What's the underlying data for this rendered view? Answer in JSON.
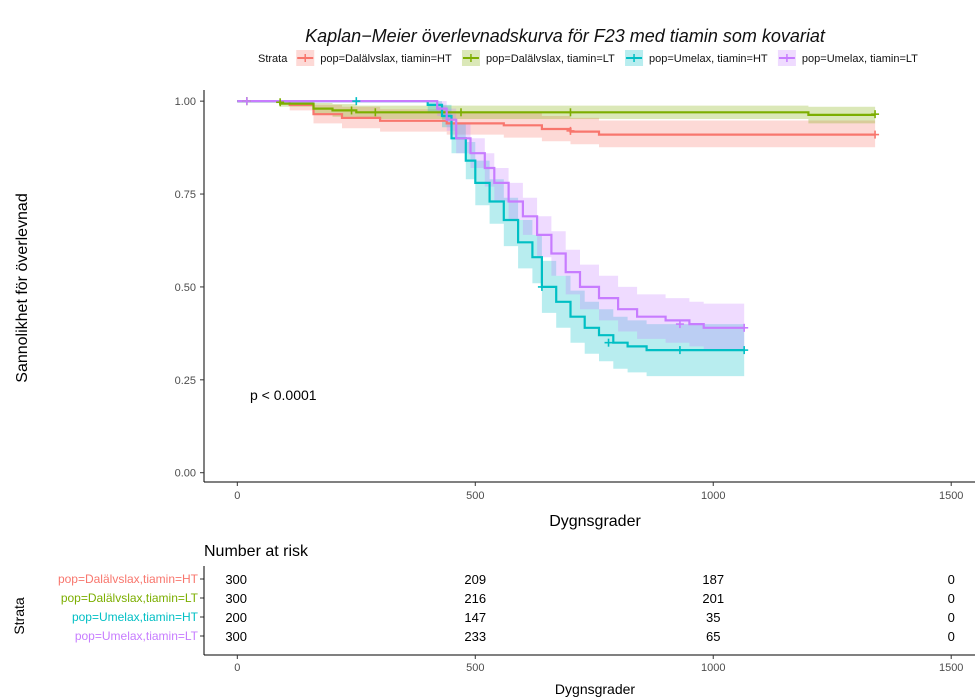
{
  "chart_data": {
    "type": "line",
    "subtype": "kaplan-meier",
    "title": "Kaplan−Meier överlevnadskurva för F23 med tiamin som kovariat",
    "xlabel": "Dygnsgrader",
    "ylabel": "Sannolikhet för överlevnad",
    "xlim": [
      -70,
      1550
    ],
    "ylim": [
      -0.025,
      1.03
    ],
    "x_ticks": [
      0,
      500,
      1000,
      1500
    ],
    "x_tick_labels": [
      "0",
      "500",
      "1000",
      "1500"
    ],
    "y_ticks": [
      0,
      0.25,
      0.5,
      0.75,
      1.0
    ],
    "y_tick_labels": [
      "0.00",
      "0.25",
      "0.50",
      "0.75",
      "1.00"
    ],
    "grid": false,
    "legend_title": "Strata",
    "legend_position": "top",
    "annotation": "p < 0.0001",
    "series": [
      {
        "name": "pop=Dalälvslax, tiamin=HT",
        "color": "#F8766D",
        "steps": [
          [
            0,
            1.0
          ],
          [
            110,
            0.99
          ],
          [
            160,
            0.965
          ],
          [
            220,
            0.955
          ],
          [
            300,
            0.947
          ],
          [
            440,
            0.94
          ],
          [
            560,
            0.935
          ],
          [
            640,
            0.925
          ],
          [
            700,
            0.918
          ],
          [
            760,
            0.91
          ],
          [
            1340,
            0.91
          ]
        ],
        "band_upper": [
          [
            0,
            1.0
          ],
          [
            110,
            1.0
          ],
          [
            160,
            0.99
          ],
          [
            220,
            0.985
          ],
          [
            300,
            0.978
          ],
          [
            440,
            0.972
          ],
          [
            560,
            0.968
          ],
          [
            640,
            0.96
          ],
          [
            700,
            0.955
          ],
          [
            760,
            0.948
          ],
          [
            1340,
            0.945
          ]
        ],
        "band_lower": [
          [
            0,
            1.0
          ],
          [
            110,
            0.975
          ],
          [
            160,
            0.94
          ],
          [
            220,
            0.927
          ],
          [
            300,
            0.918
          ],
          [
            440,
            0.91
          ],
          [
            560,
            0.902
          ],
          [
            640,
            0.892
          ],
          [
            700,
            0.884
          ],
          [
            760,
            0.876
          ],
          [
            1340,
            0.875
          ]
        ],
        "censor": [
          [
            700,
            0.92
          ],
          [
            1340,
            0.91
          ]
        ]
      },
      {
        "name": "pop=Dalälvslax, tiamin=LT",
        "color": "#7CAE00",
        "steps": [
          [
            0,
            1.0
          ],
          [
            90,
            0.993
          ],
          [
            160,
            0.98
          ],
          [
            200,
            0.975
          ],
          [
            250,
            0.97
          ],
          [
            1200,
            0.963
          ],
          [
            1340,
            0.963
          ]
        ],
        "band_upper": [
          [
            0,
            1.0
          ],
          [
            90,
            1.0
          ],
          [
            160,
            0.995
          ],
          [
            200,
            0.992
          ],
          [
            250,
            0.988
          ],
          [
            1200,
            0.985
          ],
          [
            1340,
            0.985
          ]
        ],
        "band_lower": [
          [
            0,
            1.0
          ],
          [
            90,
            0.985
          ],
          [
            160,
            0.965
          ],
          [
            200,
            0.958
          ],
          [
            250,
            0.952
          ],
          [
            1200,
            0.94
          ],
          [
            1340,
            0.94
          ]
        ],
        "censor": [
          [
            20,
            1.0
          ],
          [
            90,
            0.997
          ],
          [
            240,
            0.975
          ],
          [
            290,
            0.97
          ],
          [
            470,
            0.97
          ],
          [
            700,
            0.97
          ],
          [
            1340,
            0.965
          ]
        ]
      },
      {
        "name": "pop=Umelax, tiamin=HT",
        "color": "#00BFC4",
        "steps": [
          [
            0,
            1.0
          ],
          [
            400,
            0.99
          ],
          [
            430,
            0.96
          ],
          [
            450,
            0.9
          ],
          [
            480,
            0.84
          ],
          [
            500,
            0.78
          ],
          [
            530,
            0.73
          ],
          [
            560,
            0.68
          ],
          [
            590,
            0.62
          ],
          [
            620,
            0.58
          ],
          [
            640,
            0.5
          ],
          [
            670,
            0.46
          ],
          [
            700,
            0.42
          ],
          [
            730,
            0.39
          ],
          [
            760,
            0.37
          ],
          [
            790,
            0.35
          ],
          [
            820,
            0.34
          ],
          [
            860,
            0.33
          ],
          [
            1065,
            0.33
          ]
        ],
        "band_upper": [
          [
            0,
            1.0
          ],
          [
            400,
            1.0
          ],
          [
            430,
            0.99
          ],
          [
            450,
            0.94
          ],
          [
            480,
            0.89
          ],
          [
            500,
            0.84
          ],
          [
            530,
            0.79
          ],
          [
            560,
            0.74
          ],
          [
            590,
            0.68
          ],
          [
            620,
            0.64
          ],
          [
            640,
            0.57
          ],
          [
            670,
            0.53
          ],
          [
            700,
            0.49
          ],
          [
            730,
            0.46
          ],
          [
            760,
            0.44
          ],
          [
            790,
            0.42
          ],
          [
            820,
            0.41
          ],
          [
            860,
            0.4
          ],
          [
            1065,
            0.4
          ]
        ],
        "band_lower": [
          [
            0,
            1.0
          ],
          [
            400,
            0.97
          ],
          [
            430,
            0.93
          ],
          [
            450,
            0.86
          ],
          [
            480,
            0.79
          ],
          [
            500,
            0.72
          ],
          [
            530,
            0.67
          ],
          [
            560,
            0.61
          ],
          [
            590,
            0.55
          ],
          [
            620,
            0.51
          ],
          [
            640,
            0.43
          ],
          [
            670,
            0.39
          ],
          [
            700,
            0.35
          ],
          [
            730,
            0.32
          ],
          [
            760,
            0.3
          ],
          [
            790,
            0.28
          ],
          [
            820,
            0.27
          ],
          [
            860,
            0.26
          ],
          [
            1065,
            0.26
          ]
        ],
        "censor": [
          [
            250,
            1.0
          ],
          [
            640,
            0.5
          ],
          [
            780,
            0.35
          ],
          [
            930,
            0.33
          ],
          [
            1065,
            0.33
          ]
        ]
      },
      {
        "name": "pop=Umelax, tiamin=LT",
        "color": "#C77CFF",
        "steps": [
          [
            0,
            1.0
          ],
          [
            420,
            0.98
          ],
          [
            440,
            0.95
          ],
          [
            460,
            0.9
          ],
          [
            490,
            0.86
          ],
          [
            520,
            0.82
          ],
          [
            540,
            0.78
          ],
          [
            570,
            0.73
          ],
          [
            600,
            0.69
          ],
          [
            630,
            0.64
          ],
          [
            660,
            0.59
          ],
          [
            690,
            0.54
          ],
          [
            720,
            0.5
          ],
          [
            760,
            0.47
          ],
          [
            800,
            0.44
          ],
          [
            840,
            0.42
          ],
          [
            900,
            0.41
          ],
          [
            950,
            0.4
          ],
          [
            980,
            0.39
          ],
          [
            1065,
            0.39
          ]
        ],
        "band_upper": [
          [
            0,
            1.0
          ],
          [
            420,
            1.0
          ],
          [
            440,
            0.98
          ],
          [
            460,
            0.94
          ],
          [
            490,
            0.9
          ],
          [
            520,
            0.86
          ],
          [
            540,
            0.82
          ],
          [
            570,
            0.78
          ],
          [
            600,
            0.74
          ],
          [
            630,
            0.69
          ],
          [
            660,
            0.65
          ],
          [
            690,
            0.6
          ],
          [
            720,
            0.56
          ],
          [
            760,
            0.53
          ],
          [
            800,
            0.5
          ],
          [
            840,
            0.48
          ],
          [
            900,
            0.47
          ],
          [
            950,
            0.46
          ],
          [
            980,
            0.455
          ],
          [
            1065,
            0.455
          ]
        ],
        "band_lower": [
          [
            0,
            1.0
          ],
          [
            420,
            0.96
          ],
          [
            440,
            0.92
          ],
          [
            460,
            0.86
          ],
          [
            490,
            0.82
          ],
          [
            520,
            0.77
          ],
          [
            540,
            0.73
          ],
          [
            570,
            0.68
          ],
          [
            600,
            0.64
          ],
          [
            630,
            0.58
          ],
          [
            660,
            0.53
          ],
          [
            690,
            0.48
          ],
          [
            720,
            0.44
          ],
          [
            760,
            0.41
          ],
          [
            800,
            0.38
          ],
          [
            840,
            0.36
          ],
          [
            900,
            0.35
          ],
          [
            950,
            0.34
          ],
          [
            980,
            0.33
          ],
          [
            1065,
            0.33
          ]
        ],
        "censor": [
          [
            20,
            1.0
          ],
          [
            930,
            0.4
          ],
          [
            1065,
            0.39
          ]
        ]
      }
    ],
    "risk_table": {
      "title": "Number at risk",
      "ylabel": "Strata",
      "xlabel": "Dygnsgrader",
      "times": [
        0,
        500,
        1000,
        1500
      ],
      "rows": [
        {
          "label": "pop=Dalälvslax,tiamin=HT",
          "color": "#F8766D",
          "values": [
            "300",
            "209",
            "187",
            "0"
          ]
        },
        {
          "label": "pop=Dalälvslax,tiamin=LT",
          "color": "#7CAE00",
          "values": [
            "300",
            "216",
            "201",
            "0"
          ]
        },
        {
          "label": "pop=Umelax,tiamin=HT",
          "color": "#00BFC4",
          "values": [
            "200",
            "147",
            "35",
            "0"
          ]
        },
        {
          "label": "pop=Umelax,tiamin=LT",
          "color": "#C77CFF",
          "values": [
            "300",
            "233",
            "65",
            "0"
          ]
        }
      ]
    }
  }
}
